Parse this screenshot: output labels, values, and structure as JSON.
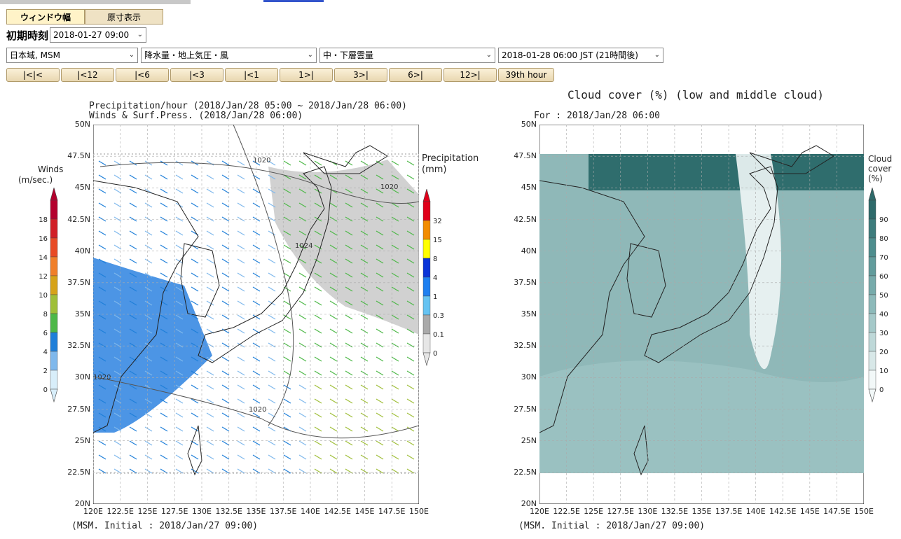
{
  "tabs": {
    "fit_width": "ウィンドウ幅",
    "original_size": "原寸表示"
  },
  "init": {
    "label": "初期時刻",
    "value": "2018-01-27 09:00"
  },
  "selects": {
    "region": "日本域, MSM",
    "element": "降水量・地上気圧・風",
    "cloud": "中・下層雲量",
    "time": "2018-01-28 06:00 JST (21時間後)"
  },
  "nav": [
    "|<|<",
    "|<12",
    "|<6",
    "|<3",
    "|<1",
    "1>|",
    "3>|",
    "6>|",
    "12>|",
    "39th hour"
  ],
  "left": {
    "title1": "Precipitation/hour (2018/Jan/28 05:00 ~ 2018/Jan/28 06:00)",
    "title2": "Winds & Surf.Press. (2018/Jan/28 06:00)",
    "footer": "(MSM. Initial : 2018/Jan/27 09:00)",
    "wind_title": "Winds",
    "wind_unit": "(m/sec.)",
    "wind_ticks": [
      "18",
      "16",
      "14",
      "12",
      "10",
      "8",
      "6",
      "4",
      "2",
      "0"
    ],
    "wind_colors": [
      "#b3002d",
      "#d11e26",
      "#e84a25",
      "#f07f2a",
      "#d6a319",
      "#9fbf38",
      "#4db848",
      "#1f7fd9",
      "#7fb8ec",
      "#d8eefa"
    ],
    "precip_title": "Precipitation",
    "precip_unit": "(mm)",
    "precip_ticks": [
      "32",
      "15",
      "8",
      "4",
      "1",
      "0.3",
      "0.1",
      "0"
    ],
    "precip_colors": [
      "#e0001a",
      "#f28c00",
      "#ffff00",
      "#0a34d8",
      "#1e7ff0",
      "#66c3f2",
      "#aaaaaa",
      "#e6e6e6"
    ],
    "isobars": [
      "1020",
      "1020",
      "1024",
      "1020",
      "1020"
    ]
  },
  "right": {
    "title": "Cloud cover (%) (low and middle cloud)",
    "subtitle": "For : 2018/Jan/28 06:00",
    "footer": "(MSM. Initial : 2018/Jan/27 09:00)",
    "cb_title": [
      "Cloud",
      "cover",
      "(%)"
    ],
    "cb_ticks": [
      "90",
      "80",
      "70",
      "60",
      "50",
      "40",
      "30",
      "20",
      "10",
      "0"
    ],
    "cb_colors": [
      "#2e6a6a",
      "#3d7c7c",
      "#4e8d8d",
      "#629c9c",
      "#77abab",
      "#8dbaba",
      "#a5c9c9",
      "#bed8d8",
      "#d8e8e8",
      "#f2f8f8"
    ]
  },
  "axes": {
    "lat": [
      "50N",
      "47.5N",
      "45N",
      "42.5N",
      "40N",
      "37.5N",
      "35N",
      "32.5N",
      "30N",
      "27.5N",
      "25N",
      "22.5N",
      "20N"
    ],
    "lon": [
      "120E",
      "122.5E",
      "125E",
      "127.5E",
      "130E",
      "132.5E",
      "135E",
      "137.5E",
      "140E",
      "142.5E",
      "145E",
      "147.5E",
      "150E"
    ]
  }
}
